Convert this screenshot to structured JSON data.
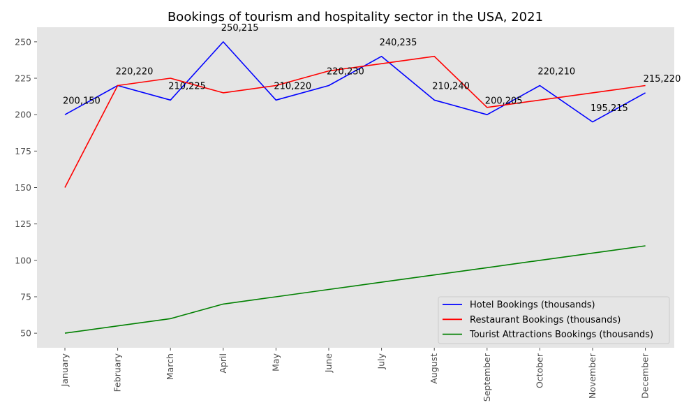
{
  "chart_data": {
    "type": "line",
    "title": "Bookings of tourism and hospitality sector in the USA, 2021",
    "xlabel": "",
    "ylabel": "",
    "categories": [
      "January",
      "February",
      "March",
      "April",
      "May",
      "June",
      "July",
      "August",
      "September",
      "October",
      "November",
      "December"
    ],
    "series": [
      {
        "name": "Hotel Bookings (thousands)",
        "color": "#0000ff",
        "values": [
          200,
          220,
          210,
          250,
          210,
          220,
          240,
          210,
          200,
          220,
          195,
          215
        ]
      },
      {
        "name": "Restaurant Bookings (thousands)",
        "color": "#ff0000",
        "values": [
          150,
          220,
          225,
          215,
          220,
          230,
          235,
          240,
          205,
          210,
          215,
          220
        ]
      },
      {
        "name": "Tourist Attractions Bookings (thousands)",
        "color": "#008000",
        "values": [
          50,
          55,
          60,
          70,
          75,
          80,
          85,
          90,
          95,
          100,
          105,
          110
        ]
      }
    ],
    "point_labels": [
      "200,150",
      "220,220",
      "210,225",
      "250,215",
      "210,220",
      "220,230",
      "240,235",
      "210,240",
      "200,205",
      "220,210",
      "195,215",
      "215,220"
    ],
    "ylim": [
      40,
      260
    ],
    "yticks": [
      50,
      75,
      100,
      125,
      150,
      175,
      200,
      225,
      250
    ],
    "grid": false,
    "legend_position": "lower-right",
    "background": "#e5e5e5"
  }
}
